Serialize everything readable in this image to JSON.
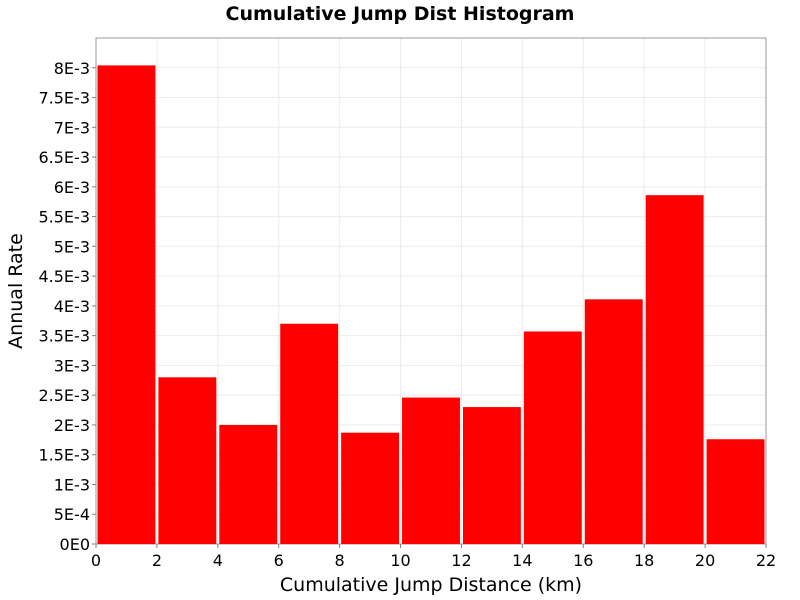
{
  "chart_data": {
    "type": "bar",
    "title": "Cumulative Jump Dist Histogram",
    "xlabel": "Cumulative Jump Distance (km)",
    "ylabel": "Annual Rate",
    "bar_color": "#ff0000",
    "grid": true,
    "xlim": [
      0,
      22
    ],
    "ylim": [
      0,
      0.0085
    ],
    "x_ticks": [
      "0",
      "2",
      "4",
      "6",
      "8",
      "10",
      "12",
      "14",
      "16",
      "18",
      "20",
      "22"
    ],
    "y_ticks": [
      "0E0",
      "5E-4",
      "1E-3",
      "1.5E-3",
      "2E-3",
      "2.5E-3",
      "3E-3",
      "3.5E-3",
      "4E-3",
      "4.5E-3",
      "5E-3",
      "5.5E-3",
      "6E-3",
      "6.5E-3",
      "7E-3",
      "7.5E-3",
      "8E-3"
    ],
    "bins": [
      {
        "x0": 0,
        "x1": 2,
        "value": 0.00804
      },
      {
        "x0": 2,
        "x1": 4,
        "value": 0.0028
      },
      {
        "x0": 4,
        "x1": 6,
        "value": 0.002
      },
      {
        "x0": 6,
        "x1": 8,
        "value": 0.0037
      },
      {
        "x0": 8,
        "x1": 10,
        "value": 0.00187
      },
      {
        "x0": 10,
        "x1": 12,
        "value": 0.00246
      },
      {
        "x0": 12,
        "x1": 14,
        "value": 0.0023
      },
      {
        "x0": 14,
        "x1": 16,
        "value": 0.00357
      },
      {
        "x0": 16,
        "x1": 18,
        "value": 0.00411
      },
      {
        "x0": 18,
        "x1": 20,
        "value": 0.00586
      },
      {
        "x0": 20,
        "x1": 22,
        "value": 0.00176
      }
    ]
  }
}
